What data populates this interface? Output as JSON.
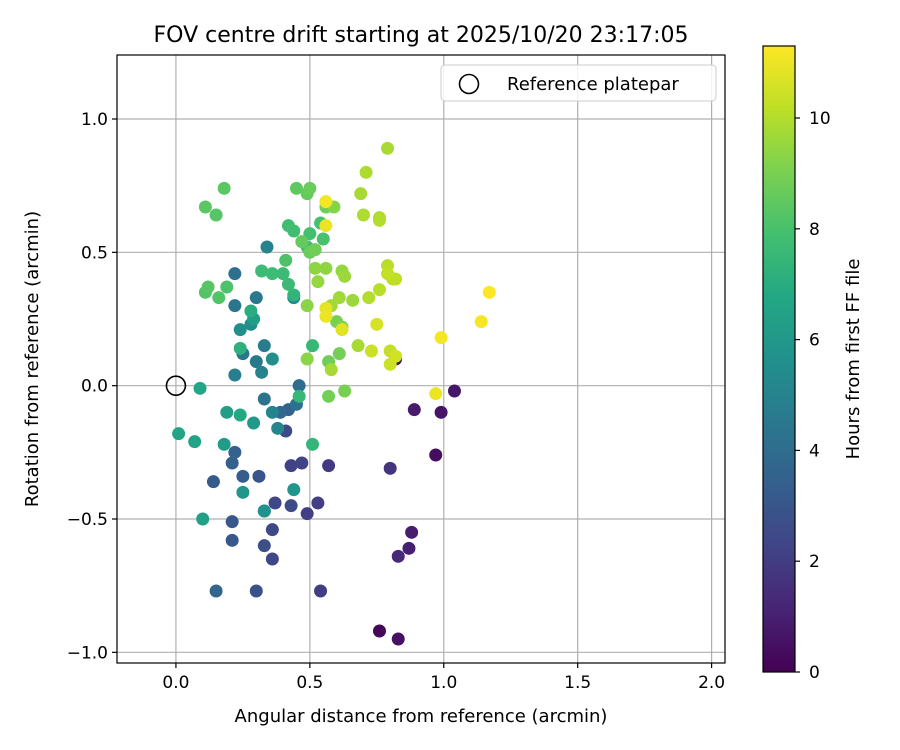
{
  "chart_data": {
    "type": "scatter",
    "title": "FOV centre drift starting at 2025/10/20 23:17:05",
    "xlabel": "Angular distance from reference (arcmin)",
    "ylabel": "Rotation from reference (arcmin)",
    "xlim": [
      -0.22,
      2.05
    ],
    "ylim": [
      -1.04,
      1.24
    ],
    "xticks": [
      0.0,
      0.5,
      1.0,
      1.5,
      2.0
    ],
    "xtick_labels": [
      "0.0",
      "0.5",
      "1.0",
      "1.5",
      "2.0"
    ],
    "yticks": [
      -1.0,
      -0.5,
      0.0,
      0.5,
      1.0
    ],
    "ytick_labels": [
      "−1.0",
      "−0.5",
      "0.0",
      "0.5",
      "1.0"
    ],
    "grid": true,
    "legend": {
      "label": "Reference platepar",
      "placement": "top-right"
    },
    "reference_point": {
      "x": 0.0,
      "y": 0.0
    },
    "colorbar": {
      "label": "Hours from first FF file",
      "colormap": "viridis",
      "range": [
        0,
        11.3
      ],
      "ticks": [
        0,
        2,
        4,
        6,
        8,
        10
      ],
      "tick_labels": [
        "0",
        "2",
        "4",
        "6",
        "8",
        "10"
      ]
    },
    "points": [
      {
        "x": 0.82,
        "y": 0.1,
        "h": 0.3
      },
      {
        "x": 0.76,
        "y": -0.92,
        "h": 0.2
      },
      {
        "x": 0.83,
        "y": -0.95,
        "h": 0.5
      },
      {
        "x": 0.97,
        "y": -0.26,
        "h": 0.4
      },
      {
        "x": 0.99,
        "y": -0.1,
        "h": 0.6
      },
      {
        "x": 1.04,
        "y": -0.02,
        "h": 0.7
      },
      {
        "x": 0.89,
        "y": -0.09,
        "h": 0.8
      },
      {
        "x": 0.88,
        "y": -0.55,
        "h": 0.9
      },
      {
        "x": 0.87,
        "y": -0.61,
        "h": 1.0
      },
      {
        "x": 0.83,
        "y": -0.64,
        "h": 1.3
      },
      {
        "x": 0.8,
        "y": -0.31,
        "h": 1.7
      },
      {
        "x": 0.57,
        "y": -0.3,
        "h": 1.9
      },
      {
        "x": 0.54,
        "y": -0.77,
        "h": 2.0
      },
      {
        "x": 0.53,
        "y": -0.44,
        "h": 2.1
      },
      {
        "x": 0.49,
        "y": -0.48,
        "h": 2.1
      },
      {
        "x": 0.43,
        "y": -0.3,
        "h": 2.2
      },
      {
        "x": 0.47,
        "y": -0.29,
        "h": 2.3
      },
      {
        "x": 0.36,
        "y": -0.65,
        "h": 2.4
      },
      {
        "x": 0.37,
        "y": -0.44,
        "h": 2.4
      },
      {
        "x": 0.36,
        "y": -0.54,
        "h": 2.5
      },
      {
        "x": 0.43,
        "y": -0.45,
        "h": 2.6
      },
      {
        "x": 0.41,
        "y": -0.17,
        "h": 2.5
      },
      {
        "x": 0.33,
        "y": -0.47,
        "h": 2.6
      },
      {
        "x": 0.33,
        "y": -0.6,
        "h": 2.7
      },
      {
        "x": 0.3,
        "y": -0.77,
        "h": 2.8
      },
      {
        "x": 0.31,
        "y": -0.34,
        "h": 3.0
      },
      {
        "x": 0.21,
        "y": -0.51,
        "h": 3.1
      },
      {
        "x": 0.21,
        "y": -0.58,
        "h": 3.1
      },
      {
        "x": 0.25,
        "y": -0.34,
        "h": 3.3
      },
      {
        "x": 0.14,
        "y": -0.36,
        "h": 3.2
      },
      {
        "x": 0.21,
        "y": -0.29,
        "h": 3.4
      },
      {
        "x": 0.22,
        "y": -0.25,
        "h": 3.5
      },
      {
        "x": 0.15,
        "y": -0.77,
        "h": 3.7
      },
      {
        "x": 0.42,
        "y": -0.09,
        "h": 3.5
      },
      {
        "x": 0.39,
        "y": -0.1,
        "h": 3.8
      },
      {
        "x": 0.46,
        "y": 0.0,
        "h": 4.0
      },
      {
        "x": 0.45,
        "y": -0.07,
        "h": 4.2
      },
      {
        "x": 0.33,
        "y": -0.05,
        "h": 4.3
      },
      {
        "x": 0.22,
        "y": 0.42,
        "h": 4.2
      },
      {
        "x": 0.22,
        "y": 0.3,
        "h": 4.4
      },
      {
        "x": 0.25,
        "y": 0.12,
        "h": 4.4
      },
      {
        "x": 0.3,
        "y": 0.33,
        "h": 4.5
      },
      {
        "x": 0.3,
        "y": 0.09,
        "h": 4.5
      },
      {
        "x": 0.33,
        "y": 0.15,
        "h": 4.7
      },
      {
        "x": 0.22,
        "y": 0.04,
        "h": 4.8
      },
      {
        "x": 0.34,
        "y": 0.52,
        "h": 5.0
      },
      {
        "x": 0.32,
        "y": 0.05,
        "h": 5.0
      },
      {
        "x": 0.36,
        "y": -0.1,
        "h": 5.1
      },
      {
        "x": 0.38,
        "y": -0.16,
        "h": 5.2
      },
      {
        "x": 0.44,
        "y": 0.33,
        "h": 5.3
      },
      {
        "x": 0.28,
        "y": 0.23,
        "h": 5.4
      },
      {
        "x": 0.24,
        "y": 0.21,
        "h": 5.5
      },
      {
        "x": 0.36,
        "y": 0.1,
        "h": 5.6
      },
      {
        "x": 0.33,
        "y": -0.47,
        "h": 5.7
      },
      {
        "x": 0.44,
        "y": -0.39,
        "h": 5.8
      },
      {
        "x": 0.25,
        "y": -0.4,
        "h": 5.9
      },
      {
        "x": 0.29,
        "y": -0.14,
        "h": 6.0
      },
      {
        "x": 0.18,
        "y": -0.22,
        "h": 6.2
      },
      {
        "x": 0.19,
        "y": -0.1,
        "h": 6.3
      },
      {
        "x": 0.29,
        "y": 0.25,
        "h": 6.3
      },
      {
        "x": 0.1,
        "y": -0.5,
        "h": 6.4
      },
      {
        "x": 0.07,
        "y": -0.21,
        "h": 6.5
      },
      {
        "x": 0.01,
        "y": -0.18,
        "h": 6.6
      },
      {
        "x": 0.09,
        "y": -0.01,
        "h": 6.7
      },
      {
        "x": 0.24,
        "y": -0.11,
        "h": 6.8
      },
      {
        "x": 0.28,
        "y": 0.28,
        "h": 7.0
      },
      {
        "x": 0.24,
        "y": 0.14,
        "h": 7.2
      },
      {
        "x": 0.44,
        "y": 0.34,
        "h": 7.3
      },
      {
        "x": 0.51,
        "y": -0.22,
        "h": 7.4
      },
      {
        "x": 0.46,
        "y": -0.04,
        "h": 7.5
      },
      {
        "x": 0.51,
        "y": 0.15,
        "h": 7.5
      },
      {
        "x": 0.42,
        "y": 0.38,
        "h": 7.6
      },
      {
        "x": 0.4,
        "y": 0.42,
        "h": 7.6
      },
      {
        "x": 0.36,
        "y": 0.42,
        "h": 7.7
      },
      {
        "x": 0.32,
        "y": 0.43,
        "h": 7.7
      },
      {
        "x": 0.44,
        "y": 0.58,
        "h": 7.8
      },
      {
        "x": 0.42,
        "y": 0.6,
        "h": 7.8
      },
      {
        "x": 0.49,
        "y": 0.52,
        "h": 7.9
      },
      {
        "x": 0.5,
        "y": 0.57,
        "h": 7.9
      },
      {
        "x": 0.54,
        "y": 0.61,
        "h": 8.0
      },
      {
        "x": 0.55,
        "y": 0.55,
        "h": 8.0
      },
      {
        "x": 0.41,
        "y": 0.47,
        "h": 8.1
      },
      {
        "x": 0.19,
        "y": 0.37,
        "h": 8.1
      },
      {
        "x": 0.16,
        "y": 0.33,
        "h": 8.2
      },
      {
        "x": 0.11,
        "y": 0.35,
        "h": 8.2
      },
      {
        "x": 0.12,
        "y": 0.37,
        "h": 8.3
      },
      {
        "x": 0.15,
        "y": 0.64,
        "h": 8.3
      },
      {
        "x": 0.11,
        "y": 0.67,
        "h": 8.4
      },
      {
        "x": 0.18,
        "y": 0.74,
        "h": 8.4
      },
      {
        "x": 0.45,
        "y": 0.74,
        "h": 8.5
      },
      {
        "x": 0.49,
        "y": 0.72,
        "h": 8.6
      },
      {
        "x": 0.5,
        "y": 0.74,
        "h": 8.7
      },
      {
        "x": 0.5,
        "y": 0.5,
        "h": 8.7
      },
      {
        "x": 0.52,
        "y": 0.51,
        "h": 8.8
      },
      {
        "x": 0.47,
        "y": 0.54,
        "h": 8.6
      },
      {
        "x": 0.56,
        "y": 0.67,
        "h": 8.8
      },
      {
        "x": 0.57,
        "y": 0.09,
        "h": 8.8
      },
      {
        "x": 0.61,
        "y": 0.12,
        "h": 8.9
      },
      {
        "x": 0.63,
        "y": -0.02,
        "h": 9.0
      },
      {
        "x": 0.57,
        "y": -0.04,
        "h": 8.9
      },
      {
        "x": 0.6,
        "y": 0.24,
        "h": 9.0
      },
      {
        "x": 0.62,
        "y": 0.22,
        "h": 9.1
      },
      {
        "x": 0.59,
        "y": 0.67,
        "h": 9.2
      },
      {
        "x": 0.49,
        "y": 0.3,
        "h": 9.3
      },
      {
        "x": 0.49,
        "y": 0.1,
        "h": 9.3
      },
      {
        "x": 0.52,
        "y": 0.44,
        "h": 9.4
      },
      {
        "x": 0.56,
        "y": 0.44,
        "h": 9.4
      },
      {
        "x": 0.53,
        "y": 0.39,
        "h": 9.5
      },
      {
        "x": 0.62,
        "y": 0.43,
        "h": 9.5
      },
      {
        "x": 0.63,
        "y": 0.41,
        "h": 9.6
      },
      {
        "x": 0.66,
        "y": 0.32,
        "h": 9.6
      },
      {
        "x": 0.61,
        "y": 0.33,
        "h": 9.7
      },
      {
        "x": 0.58,
        "y": 0.3,
        "h": 9.7
      },
      {
        "x": 0.58,
        "y": 0.06,
        "h": 9.8
      },
      {
        "x": 0.68,
        "y": 0.15,
        "h": 9.8
      },
      {
        "x": 0.69,
        "y": 0.72,
        "h": 9.8
      },
      {
        "x": 0.7,
        "y": 0.64,
        "h": 9.9
      },
      {
        "x": 0.71,
        "y": 0.8,
        "h": 9.9
      },
      {
        "x": 0.79,
        "y": 0.89,
        "h": 9.8
      },
      {
        "x": 0.76,
        "y": 0.63,
        "h": 9.9
      },
      {
        "x": 0.76,
        "y": 0.62,
        "h": 10.0
      },
      {
        "x": 0.72,
        "y": 0.33,
        "h": 10.0
      },
      {
        "x": 0.76,
        "y": 0.36,
        "h": 10.1
      },
      {
        "x": 0.79,
        "y": 0.45,
        "h": 10.1
      },
      {
        "x": 0.81,
        "y": 0.4,
        "h": 10.2
      },
      {
        "x": 0.82,
        "y": 0.4,
        "h": 10.2
      },
      {
        "x": 0.79,
        "y": 0.42,
        "h": 10.3
      },
      {
        "x": 0.8,
        "y": 0.13,
        "h": 10.3
      },
      {
        "x": 0.8,
        "y": 0.08,
        "h": 10.4
      },
      {
        "x": 0.73,
        "y": 0.13,
        "h": 10.4
      },
      {
        "x": 0.82,
        "y": 0.11,
        "h": 10.5
      },
      {
        "x": 0.75,
        "y": 0.23,
        "h": 10.6
      },
      {
        "x": 0.62,
        "y": 0.21,
        "h": 10.8
      },
      {
        "x": 0.56,
        "y": 0.29,
        "h": 10.9
      },
      {
        "x": 0.56,
        "y": 0.26,
        "h": 11.0
      },
      {
        "x": 0.56,
        "y": 0.6,
        "h": 11.0
      },
      {
        "x": 0.56,
        "y": 0.69,
        "h": 11.1
      },
      {
        "x": 0.97,
        "y": -0.03,
        "h": 11.0
      },
      {
        "x": 0.99,
        "y": 0.18,
        "h": 11.1
      },
      {
        "x": 1.14,
        "y": 0.24,
        "h": 11.2
      },
      {
        "x": 1.17,
        "y": 0.35,
        "h": 11.3
      }
    ]
  }
}
